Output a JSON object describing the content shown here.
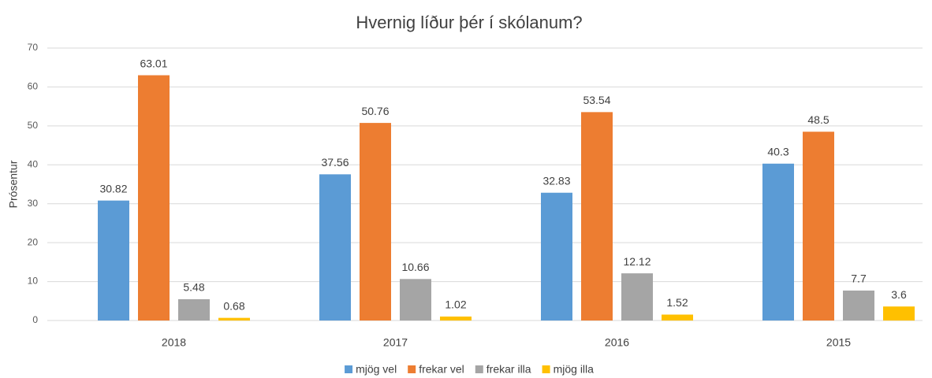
{
  "chart_data": {
    "type": "bar",
    "title": "Hvernig líður þér í skólanum?",
    "y_label": "Prósentur",
    "categories": [
      "2018",
      "2017",
      "2016",
      "2015"
    ],
    "series": [
      {
        "name": "mjög vel",
        "color": "#5b9bd5",
        "values": [
          30.82,
          37.56,
          32.83,
          40.3
        ]
      },
      {
        "name": "frekar vel",
        "color": "#ed7d31",
        "values": [
          63.01,
          50.76,
          53.54,
          48.5
        ]
      },
      {
        "name": "frekar illa",
        "color": "#a5a5a5",
        "values": [
          5.48,
          10.66,
          12.12,
          7.7
        ]
      },
      {
        "name": "mjög illa",
        "color": "#ffc000",
        "values": [
          0.68,
          1.02,
          1.52,
          3.6
        ]
      }
    ],
    "ylim": [
      0,
      70
    ],
    "yticks": [
      0,
      10,
      20,
      30,
      40,
      50,
      60,
      70
    ],
    "grid": true,
    "legend": "bottom"
  }
}
